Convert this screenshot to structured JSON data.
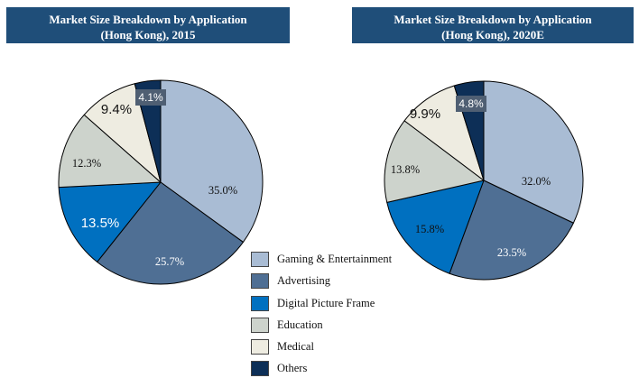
{
  "colors": {
    "title_bg": "#1f4e79",
    "gaming": "#a9bcd4",
    "advertising": "#4f6f94",
    "digital_picture_frame": "#0070c0",
    "education": "#cdd3cc",
    "medical": "#eeece1",
    "others": "#0d2f57"
  },
  "chart_data": [
    {
      "type": "pie",
      "title": "Market Size Breakdown by Application (Hong Kong), 2015",
      "title_lines": [
        "Market Size Breakdown by Application",
        "(Hong Kong), 2015"
      ],
      "slices": [
        {
          "name": "Gaming & Entertainment",
          "value": 35.0,
          "label": "35.0%"
        },
        {
          "name": "Advertising",
          "value": 25.7,
          "label": "25.7%"
        },
        {
          "name": "Digital Picture Frame",
          "value": 13.5,
          "label": "13.5%"
        },
        {
          "name": "Education",
          "value": 12.3,
          "label": "12.3%"
        },
        {
          "name": "Medical",
          "value": 9.4,
          "label": "9.4%"
        },
        {
          "name": "Others",
          "value": 4.1,
          "label": "4.1%"
        }
      ]
    },
    {
      "type": "pie",
      "title": "Market Size Breakdown by Application (Hong Kong), 2020E",
      "title_lines": [
        "Market Size Breakdown by Application",
        "(Hong Kong), 2020E"
      ],
      "slices": [
        {
          "name": "Gaming & Entertainment",
          "value": 32.0,
          "label": "32.0%"
        },
        {
          "name": "Advertising",
          "value": 23.5,
          "label": "23.5%"
        },
        {
          "name": "Digital Picture Frame",
          "value": 15.8,
          "label": "15.8%"
        },
        {
          "name": "Education",
          "value": 13.8,
          "label": "13.8%"
        },
        {
          "name": "Medical",
          "value": 9.9,
          "label": "9.9%"
        },
        {
          "name": "Others",
          "value": 4.8,
          "label": "4.8%"
        }
      ]
    }
  ],
  "legend": [
    {
      "label": "Gaming & Entertainment",
      "color": "#a9bcd4"
    },
    {
      "label": "Advertising",
      "color": "#4f6f94"
    },
    {
      "label": "Digital Picture Frame",
      "color": "#0070c0"
    },
    {
      "label": "Education",
      "color": "#cdd3cc"
    },
    {
      "label": "Medical",
      "color": "#eeece1"
    },
    {
      "label": "Others",
      "color": "#0d2f57"
    }
  ]
}
